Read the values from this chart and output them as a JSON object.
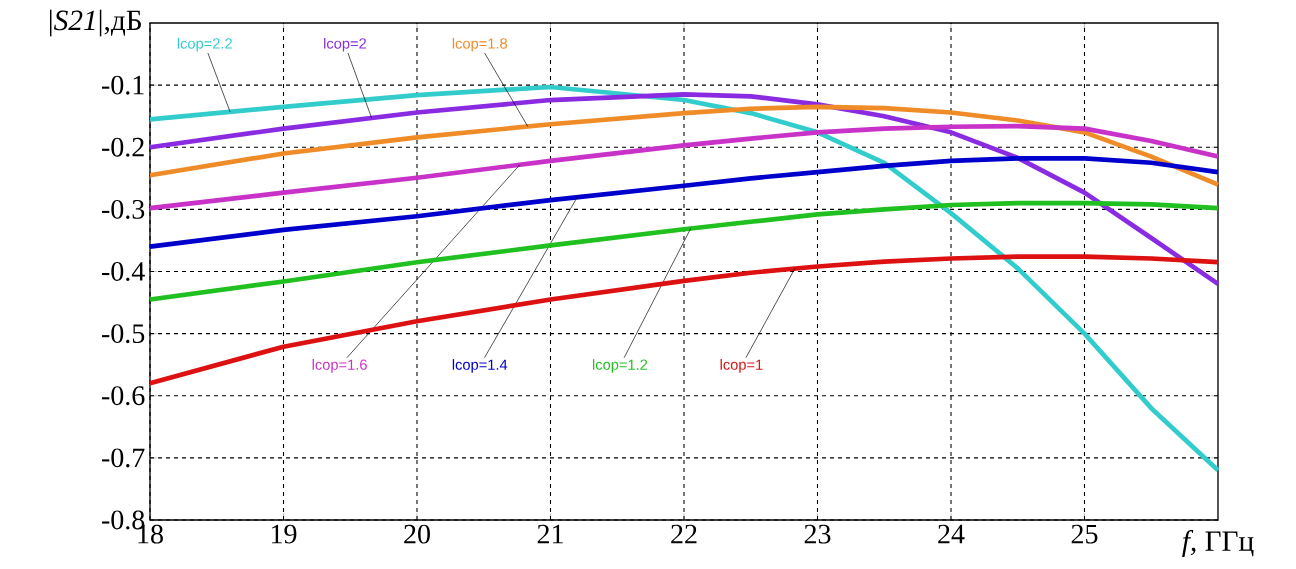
{
  "chart_data": {
    "type": "line",
    "xlabel": "*f,* ГГц",
    "ylabel": "|*S21*|,дБ",
    "x": [
      18,
      19,
      20,
      21,
      22,
      22.5,
      23,
      23.5,
      24,
      24.5,
      25,
      25.5,
      26
    ],
    "xlim": [
      18,
      26
    ],
    "xticks": [
      18,
      19,
      20,
      21,
      22,
      23,
      24,
      25
    ],
    "ylim": [
      -0.8,
      0
    ],
    "yticks": [
      -0.8,
      -0.7,
      -0.6,
      -0.5,
      -0.4,
      -0.3,
      -0.2,
      -0.1
    ],
    "grid": true,
    "marker": "none",
    "line_style": "solid",
    "series": [
      {
        "name": "lcop=2.2",
        "color": "#33cccc",
        "values": [
          -0.155,
          -0.135,
          -0.116,
          -0.103,
          -0.124,
          -0.145,
          -0.176,
          -0.225,
          -0.306,
          -0.395,
          -0.5,
          -0.62,
          -0.72
        ]
      },
      {
        "name": "lcop=2",
        "color": "#8a2be2",
        "values": [
          -0.2,
          -0.17,
          -0.144,
          -0.124,
          -0.115,
          -0.118,
          -0.131,
          -0.15,
          -0.176,
          -0.217,
          -0.273,
          -0.346,
          -0.42
        ]
      },
      {
        "name": "lcop=1.8",
        "color": "#f08c28",
        "values": [
          -0.245,
          -0.21,
          -0.184,
          -0.163,
          -0.145,
          -0.138,
          -0.135,
          -0.137,
          -0.144,
          -0.157,
          -0.176,
          -0.215,
          -0.26
        ]
      },
      {
        "name": "lcop=1.6",
        "color": "#c832c8",
        "values": [
          -0.298,
          -0.273,
          -0.249,
          -0.222,
          -0.197,
          -0.186,
          -0.176,
          -0.17,
          -0.167,
          -0.166,
          -0.17,
          -0.19,
          -0.215
        ]
      },
      {
        "name": "lcop=1.4",
        "color": "#0000cc",
        "values": [
          -0.36,
          -0.333,
          -0.311,
          -0.285,
          -0.262,
          -0.25,
          -0.24,
          -0.23,
          -0.222,
          -0.218,
          -0.218,
          -0.225,
          -0.24
        ]
      },
      {
        "name": "lcop=1.2",
        "color": "#20c020",
        "values": [
          -0.445,
          -0.416,
          -0.385,
          -0.358,
          -0.332,
          -0.32,
          -0.308,
          -0.3,
          -0.293,
          -0.29,
          -0.29,
          -0.292,
          -0.298
        ]
      },
      {
        "name": "lcop=1",
        "color": "#dd1111",
        "values": [
          -0.58,
          -0.521,
          -0.48,
          -0.445,
          -0.415,
          -0.402,
          -0.392,
          -0.384,
          -0.379,
          -0.376,
          -0.376,
          -0.379,
          -0.385
        ]
      }
    ]
  }
}
